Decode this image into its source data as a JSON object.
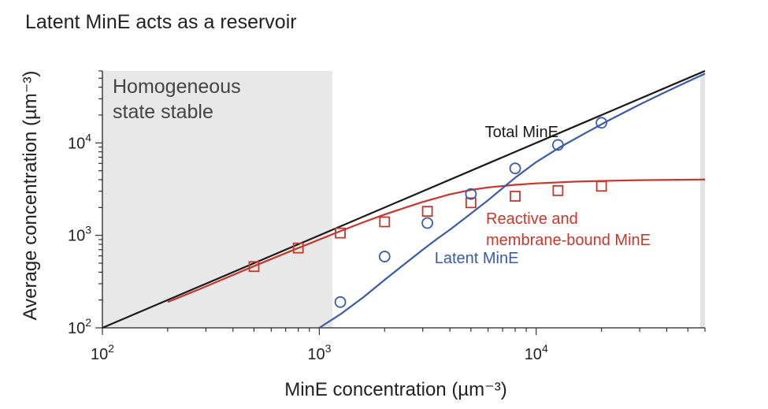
{
  "chart_data": {
    "type": "line",
    "title": "Latent MinE acts as a reservoir",
    "xlabel": "MinE concentration (µm⁻³)",
    "ylabel": "Average concentration (µm⁻³)",
    "xscale": "log",
    "yscale": "log",
    "xlim": [
      100,
      60000
    ],
    "ylim": [
      100,
      60000
    ],
    "x_ticks": [
      {
        "value": 100,
        "base": "10",
        "exp": "2"
      },
      {
        "value": 1000,
        "base": "10",
        "exp": "3"
      },
      {
        "value": 10000,
        "base": "10",
        "exp": "4"
      }
    ],
    "y_ticks": [
      {
        "value": 100,
        "base": "10",
        "exp": "2"
      },
      {
        "value": 1000,
        "base": "10",
        "exp": "3"
      },
      {
        "value": 10000,
        "base": "10",
        "exp": "4"
      }
    ],
    "shaded_region": {
      "label_lines": [
        "Homogeneous",
        "state stable"
      ],
      "x_range": [
        100,
        1150
      ],
      "color": "#e8e8e8"
    },
    "right_band": {
      "x_range": [
        57000,
        60000
      ],
      "color": "#e3e3e3"
    },
    "grid": false,
    "series": [
      {
        "name": "Total MinE",
        "color": "#1a1a1a",
        "kind": "line",
        "x": [
          100,
          60000
        ],
        "y": [
          100,
          60000
        ]
      },
      {
        "name": "Reactive and membrane-bound MinE",
        "label_lines": [
          "Reactive and",
          "membrane-bound MinE"
        ],
        "color": "#c8372d",
        "kind": "line",
        "x": [
          200,
          300,
          500,
          800,
          1200,
          1600,
          2000,
          2500,
          3000,
          4000,
          5000,
          6000,
          8000,
          10000,
          15000,
          20000,
          30000,
          45000,
          60000
        ],
        "y": [
          190,
          280,
          465,
          730,
          1070,
          1390,
          1680,
          2000,
          2300,
          2780,
          3100,
          3300,
          3520,
          3650,
          3810,
          3880,
          3950,
          3990,
          4020
        ]
      },
      {
        "name": "Reactive and membrane-bound MinE (data)",
        "color": "#c8372d",
        "kind": "square-markers",
        "x": [
          500,
          800,
          1250,
          2000,
          3150,
          5000,
          8000,
          12600,
          20000
        ],
        "y": [
          460,
          730,
          1060,
          1400,
          1820,
          2250,
          2650,
          3050,
          3400
        ]
      },
      {
        "name": "Latent MinE",
        "color": "#3a5ba8",
        "kind": "line",
        "x": [
          1000,
          1250,
          1600,
          2000,
          2500,
          3000,
          3500,
          4000,
          5000,
          6000,
          8000,
          10000,
          13000,
          17000,
          22000,
          30000,
          40000,
          50000,
          60000
        ],
        "y": [
          100,
          140,
          215,
          330,
          500,
          700,
          920,
          1150,
          1720,
          2400,
          4200,
          6200,
          9100,
          12900,
          17900,
          26000,
          36000,
          46000,
          56000
        ]
      },
      {
        "name": "Latent MinE (data)",
        "color": "#3a5ba8",
        "kind": "circle-markers",
        "x": [
          1250,
          2000,
          3150,
          5000,
          8000,
          12600,
          20000
        ],
        "y": [
          190,
          590,
          1360,
          2800,
          5300,
          9500,
          16500
        ]
      }
    ],
    "annotations": [
      {
        "text": "Total MinE",
        "color": "#1a1a1a",
        "x": 5800,
        "y": 11500
      },
      {
        "text": "Latent MinE",
        "color": "#3a5ba8",
        "x": 3400,
        "y": 500
      }
    ]
  }
}
